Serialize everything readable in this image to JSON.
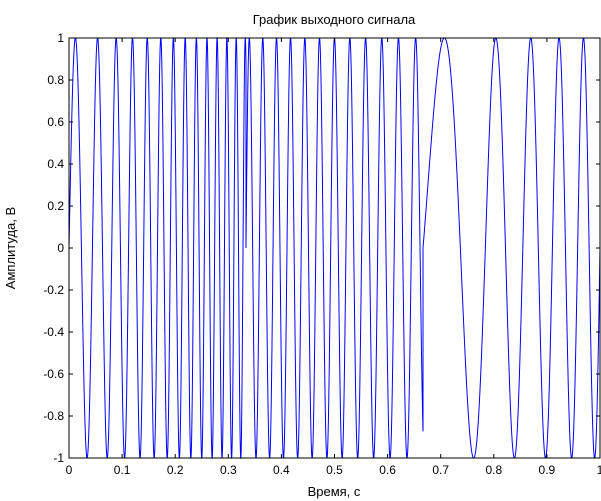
{
  "chart_data": {
    "type": "line",
    "title": "График выходного сигнала",
    "xlabel": "Время, с",
    "ylabel": "Амплитуда, В",
    "xlim": [
      0,
      1
    ],
    "ylim": [
      -1,
      1
    ],
    "xticks": [
      0,
      0.1,
      0.2,
      0.3,
      0.4,
      0.5,
      0.6,
      0.7,
      0.8,
      0.9,
      1
    ],
    "xtick_labels": [
      "0",
      "0.1",
      "0.2",
      "0.3",
      "0.4",
      "0.5",
      "0.6",
      "0.7",
      "0.8",
      "0.9",
      "1"
    ],
    "yticks": [
      -1,
      -0.8,
      -0.6,
      -0.4,
      -0.2,
      0,
      0.2,
      0.4,
      0.6,
      0.8,
      1
    ],
    "ytick_labels": [
      "-1",
      "-0.8",
      "-0.6",
      "-0.4",
      "-0.2",
      "0",
      "0.2",
      "0.4",
      "0.6",
      "0.8",
      "1"
    ],
    "grid": false,
    "line_color": "#0000ff",
    "series": [
      {
        "segments": [
          {
            "t_start": 0,
            "t_end": 0.3333,
            "f_start": 20,
            "f_end": 60,
            "value_start": 0
          },
          {
            "t_start": 0.3333,
            "t_end": 0.6667,
            "f_start": 40,
            "f_end": 30,
            "value_start": 0
          },
          {
            "t_start": 0.6667,
            "t_end": 1,
            "f_start": 5,
            "f_end": 25,
            "value_start": 0
          }
        ]
      }
    ]
  }
}
